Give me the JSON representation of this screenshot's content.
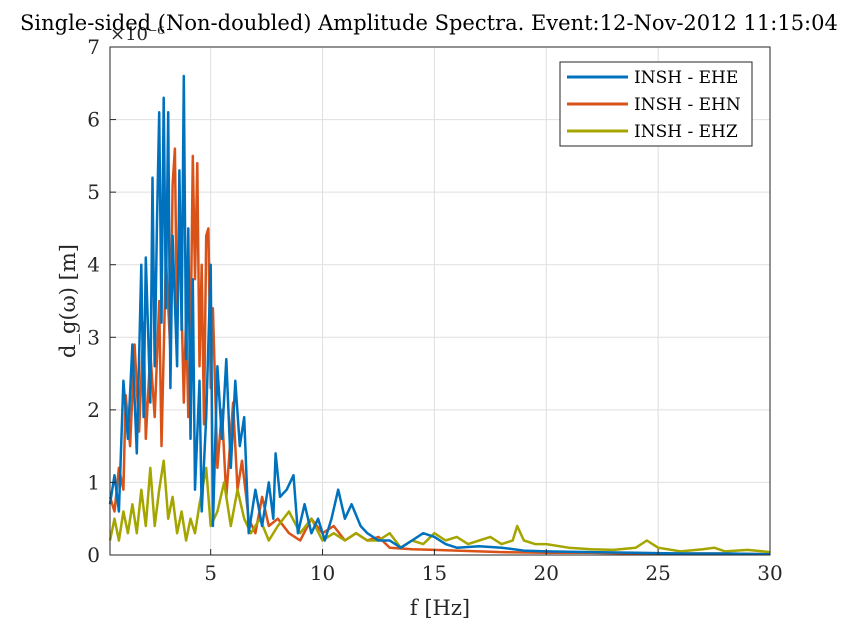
{
  "chart_data": {
    "type": "line",
    "title": "Single-sided (Non-doubled) Amplitude Spectra. Event:12-Nov-2012 11:15:04",
    "xlabel": "f [Hz]",
    "ylabel": "d_g(ω) [m]",
    "y_exponent": "×10⁻⁶",
    "xlim": [
      0.5,
      30
    ],
    "ylim": [
      0,
      7
    ],
    "xticks": [
      5,
      10,
      15,
      20,
      25,
      30
    ],
    "yticks": [
      0,
      1,
      2,
      3,
      4,
      5,
      6,
      7
    ],
    "grid": true,
    "legend_position": "top-right",
    "series": [
      {
        "name": "INSH - EHE",
        "color": "#0072BD",
        "points": [
          [
            0.5,
            0.7
          ],
          [
            0.7,
            1.1
          ],
          [
            0.9,
            0.6
          ],
          [
            1.1,
            2.4
          ],
          [
            1.3,
            1.6
          ],
          [
            1.5,
            2.9
          ],
          [
            1.7,
            1.4
          ],
          [
            1.9,
            4.0
          ],
          [
            2.0,
            1.9
          ],
          [
            2.1,
            4.1
          ],
          [
            2.3,
            2.1
          ],
          [
            2.4,
            5.2
          ],
          [
            2.5,
            2.6
          ],
          [
            2.6,
            4.6
          ],
          [
            2.7,
            6.1
          ],
          [
            2.8,
            3.2
          ],
          [
            2.9,
            6.3
          ],
          [
            3.0,
            3.4
          ],
          [
            3.1,
            6.1
          ],
          [
            3.2,
            2.3
          ],
          [
            3.3,
            4.4
          ],
          [
            3.5,
            2.6
          ],
          [
            3.6,
            5.3
          ],
          [
            3.7,
            3.1
          ],
          [
            3.8,
            6.6
          ],
          [
            3.9,
            2.7
          ],
          [
            4.0,
            4.5
          ],
          [
            4.1,
            1.6
          ],
          [
            4.2,
            3.8
          ],
          [
            4.3,
            0.9
          ],
          [
            4.5,
            2.4
          ],
          [
            4.6,
            0.6
          ],
          [
            4.8,
            1.9
          ],
          [
            5.0,
            4.0
          ],
          [
            5.1,
            0.4
          ],
          [
            5.3,
            2.6
          ],
          [
            5.5,
            1.6
          ],
          [
            5.7,
            2.7
          ],
          [
            5.9,
            1.2
          ],
          [
            6.1,
            2.4
          ],
          [
            6.3,
            1.5
          ],
          [
            6.5,
            1.9
          ],
          [
            6.7,
            0.3
          ],
          [
            7.0,
            0.9
          ],
          [
            7.3,
            0.4
          ],
          [
            7.6,
            1.0
          ],
          [
            7.8,
            0.5
          ],
          [
            7.9,
            1.4
          ],
          [
            8.1,
            0.8
          ],
          [
            8.4,
            0.9
          ],
          [
            8.7,
            1.1
          ],
          [
            8.9,
            0.3
          ],
          [
            9.2,
            0.7
          ],
          [
            9.5,
            0.3
          ],
          [
            9.8,
            0.5
          ],
          [
            10.1,
            0.2
          ],
          [
            10.4,
            0.5
          ],
          [
            10.7,
            0.9
          ],
          [
            11.0,
            0.5
          ],
          [
            11.3,
            0.7
          ],
          [
            11.7,
            0.4
          ],
          [
            12.0,
            0.3
          ],
          [
            12.5,
            0.2
          ],
          [
            13.0,
            0.2
          ],
          [
            13.5,
            0.1
          ],
          [
            14.0,
            0.2
          ],
          [
            14.5,
            0.3
          ],
          [
            15.0,
            0.25
          ],
          [
            15.5,
            0.15
          ],
          [
            16.0,
            0.1
          ],
          [
            17.0,
            0.12
          ],
          [
            18.0,
            0.1
          ],
          [
            19.0,
            0.06
          ],
          [
            20.0,
            0.05
          ],
          [
            22.0,
            0.04
          ],
          [
            24.0,
            0.03
          ],
          [
            26.0,
            0.02
          ],
          [
            28.0,
            0.02
          ],
          [
            30.0,
            0.01
          ]
        ]
      },
      {
        "name": "INSH - EHN",
        "color": "#D95319",
        "points": [
          [
            0.5,
            0.8
          ],
          [
            0.7,
            0.6
          ],
          [
            0.9,
            1.2
          ],
          [
            1.1,
            0.9
          ],
          [
            1.2,
            2.2
          ],
          [
            1.4,
            1.5
          ],
          [
            1.6,
            2.9
          ],
          [
            1.8,
            1.7
          ],
          [
            2.0,
            3.2
          ],
          [
            2.1,
            1.6
          ],
          [
            2.3,
            2.8
          ],
          [
            2.5,
            1.9
          ],
          [
            2.7,
            3.5
          ],
          [
            2.8,
            1.5
          ],
          [
            3.0,
            4.1
          ],
          [
            3.2,
            2.8
          ],
          [
            3.3,
            5.1
          ],
          [
            3.4,
            5.6
          ],
          [
            3.5,
            3.0
          ],
          [
            3.6,
            4.7
          ],
          [
            3.8,
            2.1
          ],
          [
            3.9,
            3.3
          ],
          [
            4.0,
            1.9
          ],
          [
            4.1,
            2.9
          ],
          [
            4.2,
            5.5
          ],
          [
            4.3,
            3.8
          ],
          [
            4.4,
            5.4
          ],
          [
            4.5,
            2.6
          ],
          [
            4.6,
            4.0
          ],
          [
            4.7,
            1.8
          ],
          [
            4.8,
            4.4
          ],
          [
            4.9,
            4.5
          ],
          [
            5.0,
            2.3
          ],
          [
            5.1,
            3.4
          ],
          [
            5.3,
            1.2
          ],
          [
            5.5,
            2.0
          ],
          [
            5.7,
            0.8
          ],
          [
            6.0,
            2.1
          ],
          [
            6.2,
            0.9
          ],
          [
            6.4,
            1.3
          ],
          [
            6.7,
            0.5
          ],
          [
            7.0,
            0.3
          ],
          [
            7.3,
            0.8
          ],
          [
            7.6,
            0.4
          ],
          [
            8.0,
            0.5
          ],
          [
            8.5,
            0.3
          ],
          [
            9.0,
            0.2
          ],
          [
            9.5,
            0.5
          ],
          [
            10.0,
            0.3
          ],
          [
            10.5,
            0.4
          ],
          [
            11.0,
            0.2
          ],
          [
            11.5,
            0.3
          ],
          [
            12.0,
            0.2
          ],
          [
            12.5,
            0.25
          ],
          [
            13.0,
            0.1
          ],
          [
            14.0,
            0.08
          ],
          [
            15.0,
            0.07
          ],
          [
            16.0,
            0.06
          ],
          [
            17.0,
            0.05
          ],
          [
            18.0,
            0.04
          ],
          [
            20.0,
            0.03
          ],
          [
            22.0,
            0.03
          ],
          [
            24.0,
            0.02
          ],
          [
            26.0,
            0.02
          ],
          [
            28.0,
            0.02
          ],
          [
            30.0,
            0.01
          ]
        ]
      },
      {
        "name": "INSH - EHZ",
        "color": "#A5A500",
        "points": [
          [
            0.5,
            0.2
          ],
          [
            0.7,
            0.5
          ],
          [
            0.9,
            0.2
          ],
          [
            1.1,
            0.6
          ],
          [
            1.3,
            0.3
          ],
          [
            1.5,
            0.7
          ],
          [
            1.7,
            0.3
          ],
          [
            1.9,
            0.9
          ],
          [
            2.1,
            0.4
          ],
          [
            2.3,
            1.2
          ],
          [
            2.5,
            0.4
          ],
          [
            2.7,
            0.9
          ],
          [
            2.9,
            1.3
          ],
          [
            3.1,
            0.5
          ],
          [
            3.3,
            0.8
          ],
          [
            3.5,
            0.3
          ],
          [
            3.7,
            0.6
          ],
          [
            3.9,
            0.2
          ],
          [
            4.1,
            0.5
          ],
          [
            4.3,
            0.3
          ],
          [
            4.5,
            0.7
          ],
          [
            4.8,
            1.2
          ],
          [
            5.0,
            0.4
          ],
          [
            5.3,
            0.6
          ],
          [
            5.6,
            1.0
          ],
          [
            5.9,
            0.4
          ],
          [
            6.2,
            0.9
          ],
          [
            6.5,
            0.5
          ],
          [
            6.8,
            0.3
          ],
          [
            7.2,
            0.5
          ],
          [
            7.6,
            0.2
          ],
          [
            8.0,
            0.4
          ],
          [
            8.5,
            0.6
          ],
          [
            9.0,
            0.3
          ],
          [
            9.5,
            0.5
          ],
          [
            10.0,
            0.2
          ],
          [
            10.5,
            0.3
          ],
          [
            11.0,
            0.2
          ],
          [
            11.5,
            0.3
          ],
          [
            12.0,
            0.2
          ],
          [
            12.5,
            0.2
          ],
          [
            13.0,
            0.3
          ],
          [
            13.5,
            0.1
          ],
          [
            14.0,
            0.2
          ],
          [
            14.5,
            0.15
          ],
          [
            15.0,
            0.3
          ],
          [
            15.5,
            0.2
          ],
          [
            16.0,
            0.25
          ],
          [
            16.5,
            0.15
          ],
          [
            17.0,
            0.2
          ],
          [
            17.5,
            0.25
          ],
          [
            18.0,
            0.15
          ],
          [
            18.5,
            0.2
          ],
          [
            18.7,
            0.4
          ],
          [
            19.0,
            0.2
          ],
          [
            19.5,
            0.15
          ],
          [
            20.0,
            0.15
          ],
          [
            21.0,
            0.1
          ],
          [
            22.0,
            0.08
          ],
          [
            23.0,
            0.07
          ],
          [
            24.0,
            0.1
          ],
          [
            24.5,
            0.2
          ],
          [
            25.0,
            0.1
          ],
          [
            26.0,
            0.05
          ],
          [
            27.0,
            0.08
          ],
          [
            27.5,
            0.1
          ],
          [
            28.0,
            0.05
          ],
          [
            29.0,
            0.07
          ],
          [
            30.0,
            0.04
          ]
        ]
      }
    ]
  }
}
